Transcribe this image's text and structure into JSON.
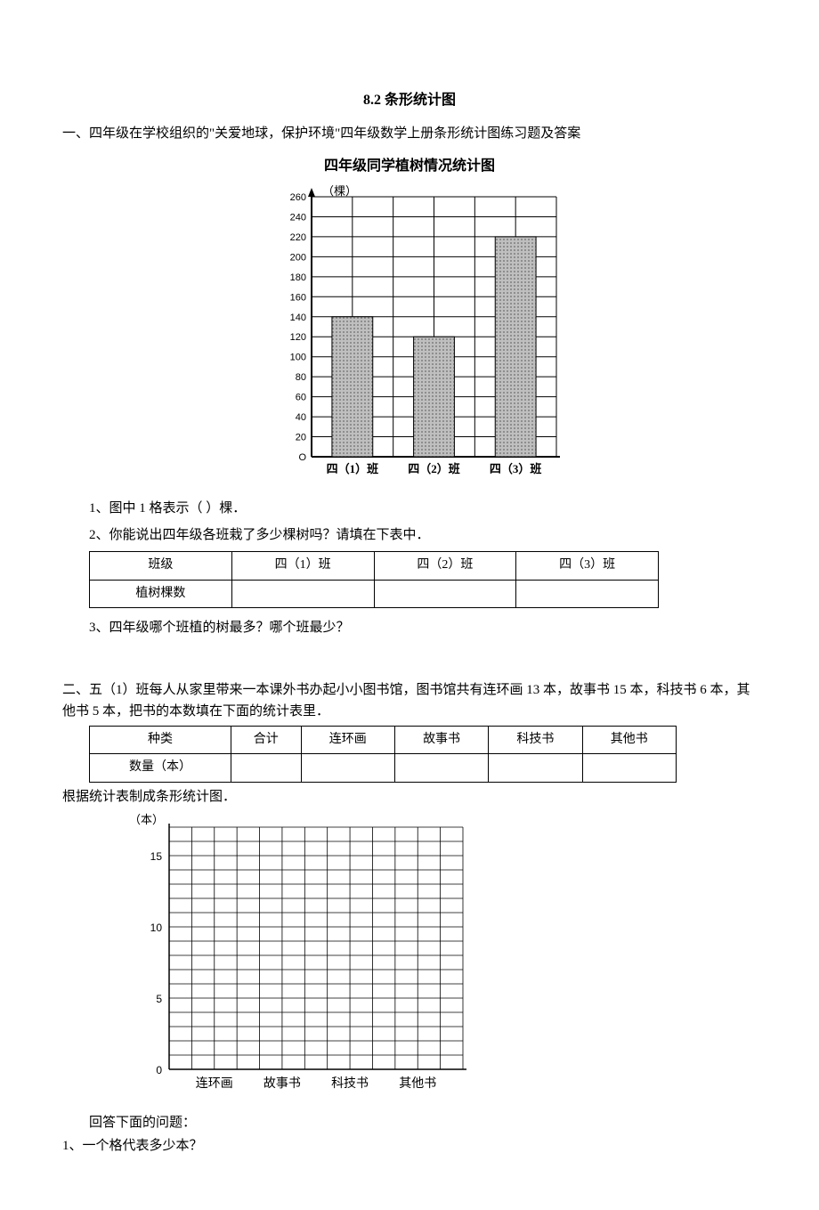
{
  "page": {
    "title": "8.2 条形统计图"
  },
  "section1": {
    "intro": "一、四年级在学校组织的\"关爱地球，保护环境\"四年级数学上册条形统计图练习题及答案",
    "chart": {
      "type": "bar",
      "title": "四年级同学植树情况统计图",
      "y_axis_label": "（棵）",
      "title_fontsize": 16,
      "label_fontsize": 12,
      "ytick_values": [
        0,
        20,
        40,
        60,
        80,
        100,
        120,
        140,
        160,
        180,
        200,
        220,
        240,
        260
      ],
      "ylim": [
        0,
        260
      ],
      "ytick_step": 20,
      "categories": [
        "四（1）班",
        "四（2）班",
        "四（3）班"
      ],
      "values": [
        140,
        120,
        220
      ],
      "bar_fill": "pattern-dots",
      "bar_colors": [
        "#b0b0b0",
        "#b0b0b0",
        "#b0b0b0"
      ],
      "bar_width": 0.5,
      "grid_color": "#000000",
      "background_color": "#ffffff",
      "axis_color": "#000000",
      "tick_fontsize": 11
    },
    "q1": "1、图中 1 格表示（  ）棵．",
    "q2": "2、你能说出四年级各班栽了多少棵树吗？请填在下表中．",
    "table": {
      "headers": [
        "班级",
        "四（1）班",
        "四（2）班",
        "四（3）班"
      ],
      "row_label": "植树棵数",
      "cells": [
        "",
        "",
        ""
      ]
    },
    "q3": "3、四年级哪个班植的树最多？哪个班最少？"
  },
  "section2": {
    "intro": "二、五（1）班每人从家里带来一本课外书办起小小图书馆，图书馆共有连环画 13 本，故事书 15 本，科技书 6 本，其他书 5 本，把书的本数填在下面的统计表里．",
    "table": {
      "headers": [
        "种类",
        "合计",
        "连环画",
        "故事书",
        "科技书",
        "其他书"
      ],
      "row_label": "数量（本）",
      "cells": [
        "",
        "",
        "",
        "",
        ""
      ]
    },
    "instr": "根据统计表制成条形统计图．",
    "blank_chart": {
      "type": "bar",
      "y_axis_label": "（本）",
      "label_fontsize": 12,
      "ytick_values": [
        0,
        5,
        10,
        15
      ],
      "ytick_labels": [
        "0",
        "5",
        "10",
        "15"
      ],
      "ylim": [
        0,
        17
      ],
      "ytick_major_step": 5,
      "ytick_minor_step": 1,
      "total_rows": 17,
      "categories": [
        "连环画",
        "故事书",
        "科技书",
        "其他书"
      ],
      "values": [
        null,
        null,
        null,
        null
      ],
      "grid_color": "#000000",
      "axis_color": "#000000",
      "background_color": "#ffffff",
      "tick_fontsize": 12,
      "cat_fontsize": 14,
      "cols_per_cat": 3,
      "total_cols": 13
    },
    "closing": "回答下面的问题：",
    "q1": "1、一个格代表多少本？"
  }
}
